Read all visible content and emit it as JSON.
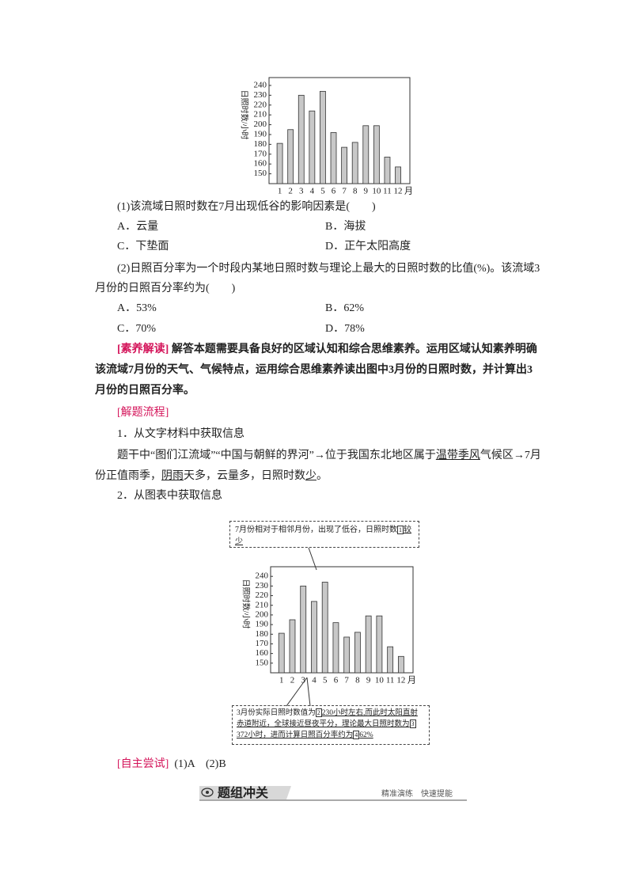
{
  "chart_data": [
    {
      "type": "bar",
      "y_label": "日照时数/小时",
      "categories": [
        "1",
        "2",
        "3",
        "4",
        "5",
        "6",
        "7",
        "8",
        "9",
        "10",
        "11",
        "12"
      ],
      "x_unit": "月",
      "values": [
        181,
        195,
        230,
        214,
        234,
        192,
        177,
        182,
        199,
        199,
        167,
        157
      ],
      "color": "#c8c8c8",
      "ylim": [
        140,
        248
      ],
      "yticks": [
        150,
        160,
        170,
        180,
        190,
        200,
        210,
        220,
        230,
        240
      ]
    },
    {
      "type": "bar",
      "y_label": "日照时数/小时",
      "categories": [
        "1",
        "2",
        "3",
        "4",
        "5",
        "6",
        "7",
        "8",
        "9",
        "10",
        "11",
        "12"
      ],
      "x_unit": "月",
      "values": [
        181,
        195,
        230,
        214,
        234,
        192,
        177,
        182,
        199,
        199,
        167,
        157
      ],
      "color": "#c8c8c8",
      "ylim": [
        140,
        250
      ],
      "yticks": [
        150,
        160,
        170,
        180,
        190,
        200,
        210,
        220,
        230,
        240
      ]
    }
  ],
  "questions": [
    {
      "stem": "(1)该流域日照时数在7月出现低谷的影响因素是(　　)",
      "options": [
        "A．云量",
        "B．海拔",
        "C．下垫面",
        "D．正午太阳高度"
      ]
    },
    {
      "stem": "(2)日照百分率为一个时段内某地日照时数与理论上最大的日照时数的比值(%)。该流域3月份的日照百分率约为(　　)",
      "options": [
        "A．53%",
        "B．62%",
        "C．70%",
        "D．78%"
      ]
    }
  ],
  "analysis": {
    "label": "[素养解读]",
    "text": "解答本题需要具备良好的区域认知和综合思维素养。运用区域认知素养明确该流域7月份的天气、气候特点，运用综合思维素养读出图中3月份的日照时数，并计算出3月份的日照百分率。"
  },
  "process": {
    "label": "[解题流程]",
    "step1": "1．从文字材料中获取信息",
    "step1_text": [
      "题干中“图们江流域”“中国与朝鲜的界河”→位于我国东北地区属于",
      "温带季风",
      "气候区→7月份正值雨季，",
      "阴雨",
      "天多，云量多，日照时数",
      "少",
      "。"
    ],
    "step2": "2．从图表中获取信息"
  },
  "callouts": [
    [
      "7月份相对于相邻月份，出现了低谷，日照时数",
      "1",
      "较少"
    ],
    [
      "3月份实际日照时数值为",
      "2",
      "230小时左右,而此时太阳直射赤道附近，全球接近昼夜平分，理论最大日照时数为",
      "3",
      "372小时，进而计算日照百分率约为",
      "4",
      "62%"
    ]
  ],
  "answer": {
    "label": "[自主尝试]",
    "text": "(1)A　(2)B"
  },
  "footer": {
    "title": "题组冲关",
    "subtitle": "精准演练　快速提能"
  }
}
